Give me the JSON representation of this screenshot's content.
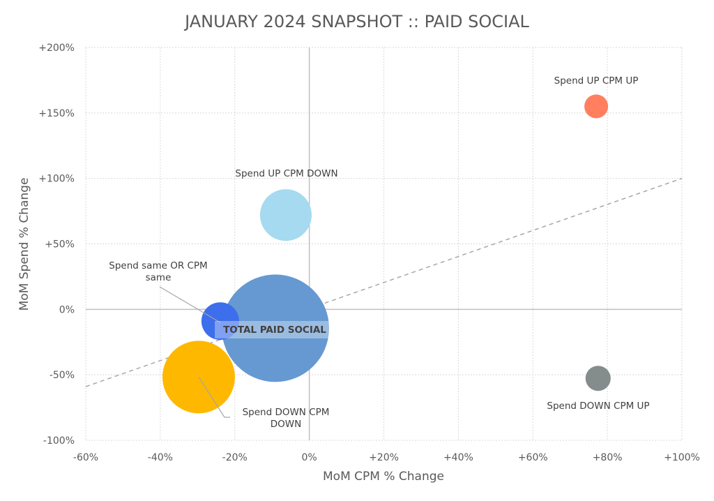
{
  "chart_data": {
    "type": "bubble",
    "title": "JANUARY 2024 SNAPSHOT :: PAID SOCIAL",
    "xlabel": "MoM CPM % Change",
    "ylabel": "MoM Spend % Change",
    "xlim": [
      -60,
      100
    ],
    "ylim": [
      -100,
      200
    ],
    "x_ticks": [
      -60,
      -40,
      -20,
      0,
      20,
      40,
      60,
      80,
      100
    ],
    "x_tick_labels": [
      "-60%",
      "-40%",
      "-20%",
      "0%",
      "+20%",
      "+40%",
      "+60%",
      "+80%",
      "+100%"
    ],
    "y_ticks": [
      200,
      150,
      100,
      50,
      0,
      -50,
      -100
    ],
    "y_tick_labels": [
      "+200%",
      "+150%",
      "+100%",
      "+50%",
      "0%",
      "-50%",
      "-100%"
    ],
    "grid": "dotted",
    "reference_line": {
      "style": "dashed",
      "color": "#A6A6A6",
      "points": [
        [
          -60,
          -59
        ],
        [
          100,
          100
        ]
      ]
    },
    "points": [
      {
        "label": "Spend UP CPM UP",
        "x": 77,
        "y": 155,
        "size": 290,
        "color": "#FF7F5E"
      },
      {
        "label": "Spend UP CPM DOWN",
        "x": -6.3,
        "y": 72,
        "size": 1370,
        "color": "#A5DAF0"
      },
      {
        "label": "TOTAL PAID SOCIAL",
        "x": -9.1,
        "y": -14.4,
        "size": 5930,
        "color": "#6699D1"
      },
      {
        "label": "Spend same OR CPM same",
        "x": -23.9,
        "y": -9,
        "size": 730,
        "color": "#3D6EEB"
      },
      {
        "label": "Spend DOWN CPM DOWN",
        "x": -29.7,
        "y": -51.7,
        "size": 2700,
        "color": "#FFB800"
      },
      {
        "label": "Spend DOWN CPM UP",
        "x": 77.5,
        "y": -52.7,
        "size": 325,
        "color": "#858C8C"
      }
    ]
  }
}
